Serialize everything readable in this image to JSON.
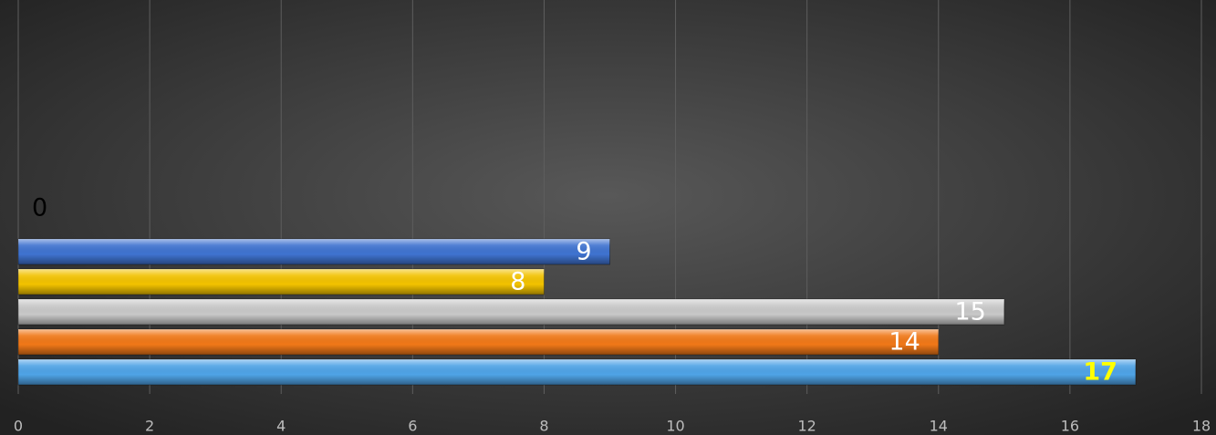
{
  "chart_data": {
    "type": "bar",
    "orientation": "horizontal",
    "categories": [
      null
    ],
    "series": [
      {
        "name": null,
        "color": "#4a7fd6",
        "label_color": "#000000",
        "values": [
          0
        ]
      },
      {
        "name": null,
        "color": "#3f73d0",
        "label_color": "#ffffff",
        "values": [
          9
        ]
      },
      {
        "name": null,
        "color": "#f2c200",
        "label_color": "#ffffff",
        "values": [
          8
        ]
      },
      {
        "name": null,
        "color": "#c8c8c8",
        "label_color": "#ffffff",
        "values": [
          15
        ]
      },
      {
        "name": null,
        "color": "#f07818",
        "label_color": "#ffffff",
        "values": [
          14
        ]
      },
      {
        "name": null,
        "color": "#4fa3e6",
        "label_color": "#ffff00",
        "label_bold": true,
        "values": [
          17
        ]
      }
    ],
    "xlim": [
      0,
      18
    ],
    "xticks": [
      0,
      2,
      4,
      6,
      8,
      10,
      12,
      14,
      16,
      18
    ],
    "grid": true
  }
}
